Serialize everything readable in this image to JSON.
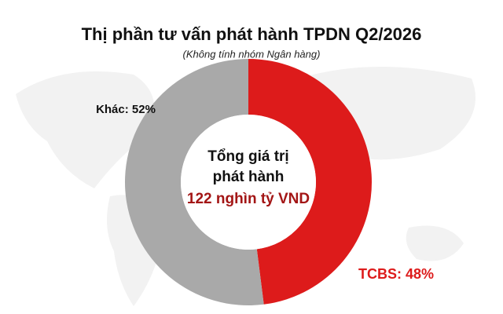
{
  "chart_data": {
    "type": "pie",
    "title": "Thị phần tư vấn phát hành TPDN Q2/2026",
    "subtitle": "(Không tính nhóm Ngân hàng)",
    "center_text": [
      "Tổng giá trị",
      "phát hành",
      "122 nghìn tỷ VND"
    ],
    "values": [
      48,
      52
    ],
    "value_labels": [
      "TCBS: 48%",
      "Khác: 52%"
    ],
    "colors": [
      "#dd1b1b",
      "#a9a9a9"
    ]
  }
}
